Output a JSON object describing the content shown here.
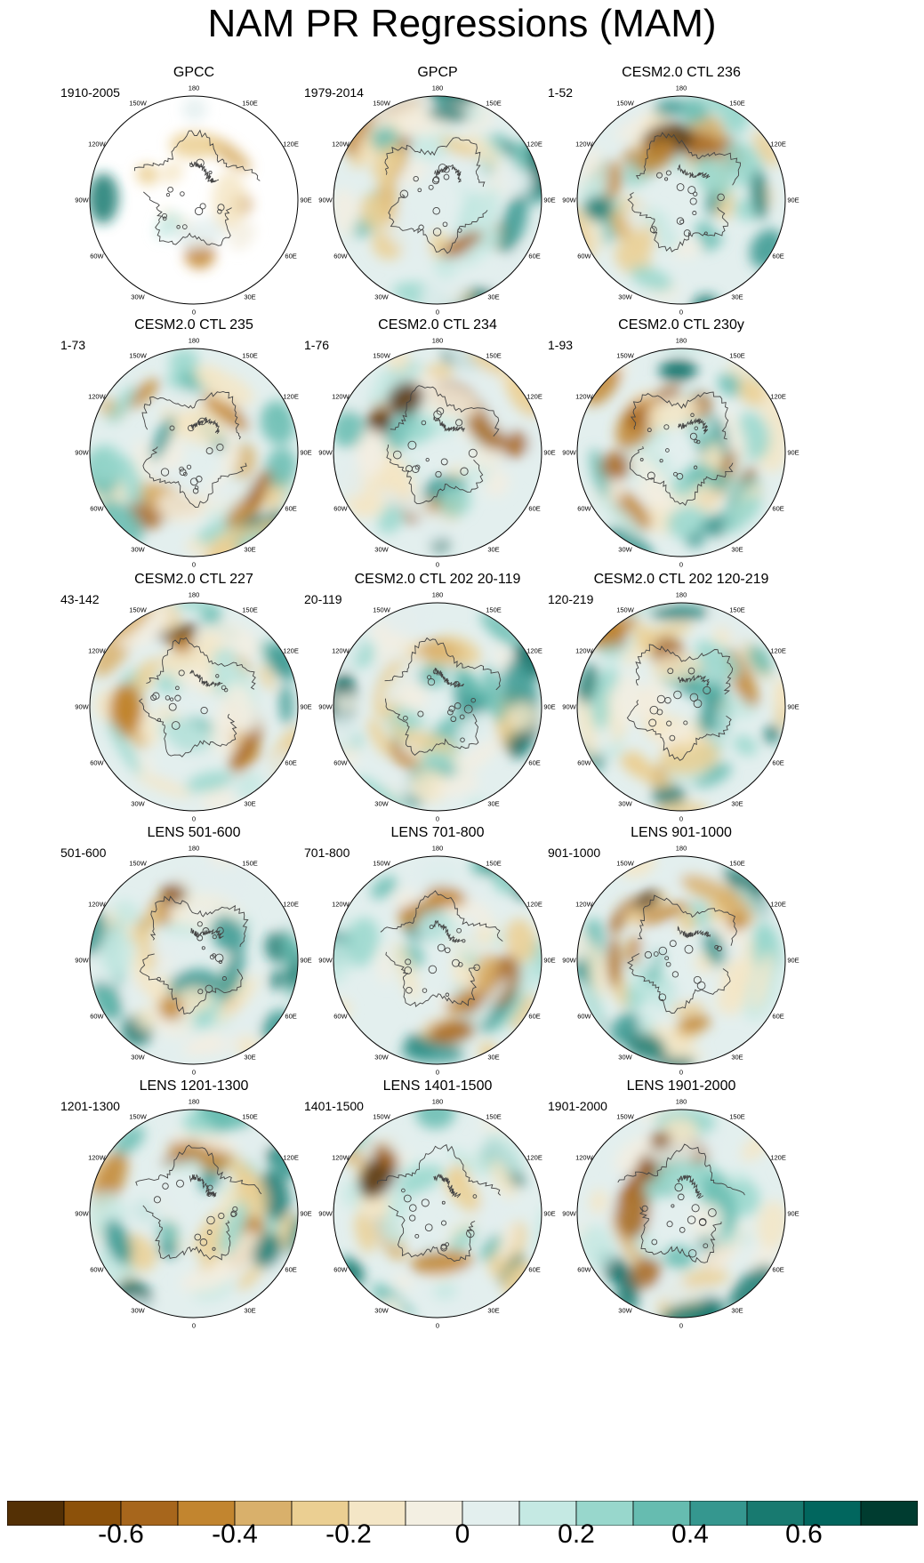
{
  "title": "NAM PR Regressions (MAM)",
  "lon_labels": [
    "180",
    "150E",
    "120E",
    "90E",
    "60E",
    "30E",
    "0",
    "30W",
    "60W",
    "90W",
    "120W",
    "150W"
  ],
  "panels": [
    {
      "title": "GPCC",
      "period": "1910-2005",
      "land_only": true,
      "seed": 3
    },
    {
      "title": "GPCP",
      "period": "1979-2014",
      "land_only": false,
      "seed": 7
    },
    {
      "title": "CESM2.0 CTL 236",
      "period": "1-52",
      "land_only": false,
      "seed": 11
    },
    {
      "title": "CESM2.0 CTL 235",
      "period": "1-73",
      "land_only": false,
      "seed": 13
    },
    {
      "title": "CESM2.0 CTL 234",
      "period": "1-76",
      "land_only": false,
      "seed": 17
    },
    {
      "title": "CESM2.0 CTL 230y",
      "period": "1-93",
      "land_only": false,
      "seed": 19
    },
    {
      "title": "CESM2.0 CTL 227",
      "period": "43-142",
      "land_only": false,
      "seed": 23
    },
    {
      "title": "CESM2.0 CTL 202 20-119",
      "period": "20-119",
      "land_only": false,
      "seed": 29
    },
    {
      "title": "CESM2.0 CTL 202 120-219",
      "period": "120-219",
      "land_only": false,
      "seed": 31
    },
    {
      "title": "LENS 501-600",
      "period": "501-600",
      "land_only": false,
      "seed": 37
    },
    {
      "title": "LENS 701-800",
      "period": "701-800",
      "land_only": false,
      "seed": 41
    },
    {
      "title": "LENS 901-1000",
      "period": "901-1000",
      "land_only": false,
      "seed": 43
    },
    {
      "title": "LENS 1201-1300",
      "period": "1201-1300",
      "land_only": false,
      "seed": 47
    },
    {
      "title": "LENS 1401-1500",
      "period": "1401-1500",
      "land_only": false,
      "seed": 53
    },
    {
      "title": "LENS 1901-2000",
      "period": "1901-2000",
      "land_only": false,
      "seed": 59
    }
  ],
  "colorbar": {
    "colors": [
      "#543005",
      "#8c510a",
      "#a7661c",
      "#c2852f",
      "#d9b06b",
      "#ebcf92",
      "#f4e6c6",
      "#f3efe2",
      "#e3efee",
      "#c5e9e3",
      "#98d7cc",
      "#66bcb0",
      "#35978f",
      "#187a70",
      "#01665e",
      "#003c30"
    ],
    "tick_labels": [
      "-0.6",
      "-0.4",
      "-0.2",
      "0",
      "0.2",
      "0.4",
      "0.6"
    ],
    "tick_values": [
      -0.6,
      -0.4,
      -0.2,
      0,
      0.2,
      0.4,
      0.6
    ],
    "min": -0.8,
    "max": 0.8
  }
}
